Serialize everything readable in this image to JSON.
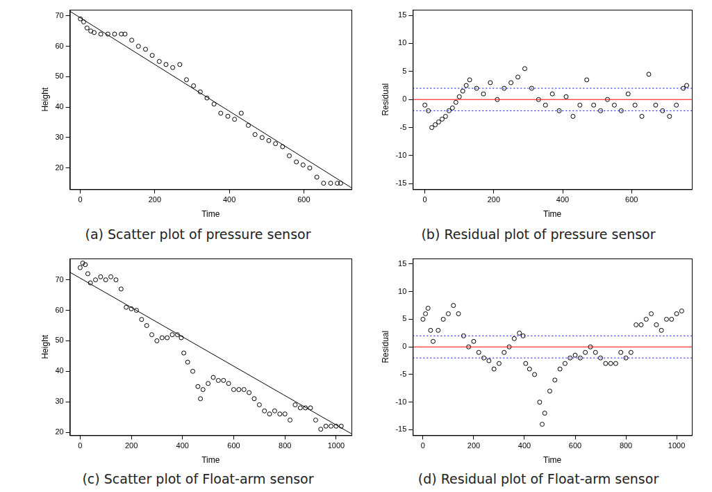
{
  "chart_data": [
    {
      "type": "scatter",
      "caption": "(a) Scatter plot of pressure sensor",
      "x_label": "Time",
      "y_label": "Height",
      "xlim": [
        -28,
        728
      ],
      "ylim": [
        13,
        72
      ],
      "xticks": [
        0,
        200,
        400,
        600
      ],
      "yticks": [
        20,
        30,
        40,
        50,
        60,
        70
      ],
      "grid": false,
      "series": [
        {
          "type": "scatter",
          "color": "#000000",
          "marker": "circle",
          "x": [
            0,
            9,
            18,
            28,
            37,
            55,
            74,
            92,
            110,
            120,
            138,
            156,
            175,
            193,
            212,
            230,
            248,
            267,
            285,
            304,
            322,
            340,
            359,
            377,
            396,
            414,
            432,
            451,
            469,
            488,
            506,
            524,
            543,
            561,
            580,
            598,
            616,
            635,
            653,
            672,
            690,
            699
          ],
          "values": [
            69,
            68,
            66,
            65,
            64.5,
            64,
            64,
            64,
            64,
            64,
            62,
            60,
            59,
            57,
            55,
            54,
            53,
            54,
            49,
            47,
            45,
            43,
            41,
            38,
            37,
            36,
            38,
            34,
            31,
            30,
            29,
            28,
            27,
            24,
            22,
            21,
            20,
            17,
            15,
            15,
            15,
            15
          ]
        },
        {
          "type": "line",
          "color": "#000000",
          "line_style": "solid",
          "x": [
            -28,
            728
          ],
          "values": [
            71.5,
            13.5
          ]
        }
      ]
    },
    {
      "type": "scatter",
      "caption": "(b) Residual plot of pressure sensor",
      "x_label": "Time",
      "y_label": "Residual",
      "xlim": [
        -35,
        775
      ],
      "ylim": [
        -16,
        16
      ],
      "xticks": [
        0,
        200,
        400,
        600
      ],
      "yticks": [
        -15,
        -10,
        -5,
        0,
        5,
        10,
        15
      ],
      "grid": false,
      "series": [
        {
          "type": "scatter",
          "color": "#000000",
          "marker": "circle",
          "x": [
            0,
            10,
            20,
            30,
            40,
            50,
            60,
            70,
            80,
            90,
            100,
            110,
            120,
            130,
            150,
            170,
            190,
            210,
            230,
            250,
            270,
            290,
            310,
            330,
            350,
            370,
            390,
            410,
            430,
            450,
            470,
            490,
            510,
            530,
            550,
            570,
            590,
            610,
            630,
            650,
            670,
            690,
            710,
            730,
            750,
            760
          ],
          "values": [
            -1,
            -2,
            -5,
            -4.5,
            -4,
            -3.5,
            -3,
            -2,
            -1.5,
            -0.5,
            0.5,
            1.5,
            2.5,
            3.5,
            2,
            1,
            3,
            0,
            2,
            3,
            4,
            5.5,
            2,
            0,
            -1,
            1,
            -2,
            0.5,
            -3,
            -1,
            3.5,
            -1,
            -2,
            0,
            -1,
            -2,
            1,
            -1,
            -3,
            4.5,
            -1,
            -2,
            -3,
            -1,
            2,
            2.5
          ]
        }
      ],
      "reference_lines": [
        {
          "y": 0,
          "color": "#ff0000",
          "line_style": "solid"
        },
        {
          "y": 2,
          "color": "#0000ff",
          "line_style": "dotted"
        },
        {
          "y": -2,
          "color": "#0000ff",
          "line_style": "dotted"
        }
      ]
    },
    {
      "type": "scatter",
      "caption": "(c) Scatter plot of Float-arm sensor",
      "x_label": "Time",
      "y_label": "Height",
      "xlim": [
        -40,
        1060
      ],
      "ylim": [
        19,
        77
      ],
      "xticks": [
        0,
        200,
        400,
        600,
        800,
        1000
      ],
      "yticks": [
        20,
        30,
        40,
        50,
        60,
        70
      ],
      "grid": false,
      "series": [
        {
          "type": "scatter",
          "color": "#000000",
          "marker": "circle",
          "x": [
            0,
            10,
            20,
            30,
            40,
            60,
            80,
            100,
            120,
            140,
            160,
            180,
            200,
            220,
            240,
            260,
            280,
            300,
            320,
            340,
            360,
            380,
            395,
            405,
            420,
            440,
            460,
            470,
            480,
            500,
            520,
            540,
            560,
            580,
            600,
            620,
            640,
            660,
            680,
            700,
            720,
            740,
            760,
            780,
            800,
            820,
            840,
            860,
            880,
            900,
            920,
            940,
            960,
            980,
            1000,
            1020
          ],
          "values": [
            74,
            75.5,
            75,
            72,
            69,
            70,
            71,
            70,
            71,
            70,
            67,
            61,
            60.5,
            60,
            57,
            55,
            52,
            50,
            51,
            51,
            52,
            52,
            51,
            46,
            43,
            40,
            35,
            31,
            34,
            36,
            38,
            37,
            37,
            36,
            34,
            34,
            34,
            33,
            31,
            29,
            27,
            26,
            27,
            26,
            26,
            24,
            29,
            28,
            28,
            28,
            24,
            21,
            22,
            22,
            22,
            22
          ]
        },
        {
          "type": "line",
          "color": "#000000",
          "line_style": "solid",
          "x": [
            -40,
            1060
          ],
          "values": [
            72.5,
            19.5
          ]
        }
      ]
    },
    {
      "type": "scatter",
      "caption": "(d) Residual plot of Float-arm sensor",
      "x_label": "Time",
      "y_label": "Residual",
      "xlim": [
        -40,
        1060
      ],
      "ylim": [
        -16,
        16
      ],
      "xticks": [
        0,
        200,
        400,
        600,
        800,
        1000
      ],
      "yticks": [
        -15,
        -10,
        -5,
        0,
        5,
        10,
        15
      ],
      "grid": false,
      "series": [
        {
          "type": "scatter",
          "color": "#000000",
          "marker": "circle",
          "x": [
            0,
            10,
            20,
            30,
            40,
            60,
            80,
            100,
            120,
            140,
            160,
            180,
            200,
            220,
            240,
            260,
            280,
            300,
            320,
            340,
            360,
            380,
            395,
            405,
            420,
            440,
            460,
            470,
            480,
            500,
            520,
            540,
            560,
            580,
            600,
            620,
            640,
            660,
            680,
            700,
            720,
            740,
            760,
            780,
            800,
            820,
            840,
            860,
            880,
            900,
            920,
            940,
            960,
            980,
            1000,
            1020
          ],
          "values": [
            5,
            6,
            7,
            3,
            1,
            3,
            5,
            6,
            7.5,
            6,
            2,
            0,
            1,
            -1,
            -2,
            -2.5,
            -4,
            -3,
            -1,
            0,
            1.5,
            2.5,
            2,
            -3,
            -4,
            -5,
            -10,
            -14,
            -12,
            -8,
            -6,
            -4,
            -3,
            -2,
            -1.5,
            -2,
            -1,
            0,
            -1,
            -2,
            -3,
            -3,
            -3,
            -1,
            -2,
            -1,
            4,
            4,
            5,
            6,
            4,
            3,
            5,
            5,
            6,
            6.5
          ]
        }
      ],
      "reference_lines": [
        {
          "y": 0,
          "color": "#ff0000",
          "line_style": "solid"
        },
        {
          "y": 2,
          "color": "#0000ff",
          "line_style": "dotted"
        },
        {
          "y": -2,
          "color": "#0000ff",
          "line_style": "dotted"
        }
      ]
    }
  ]
}
